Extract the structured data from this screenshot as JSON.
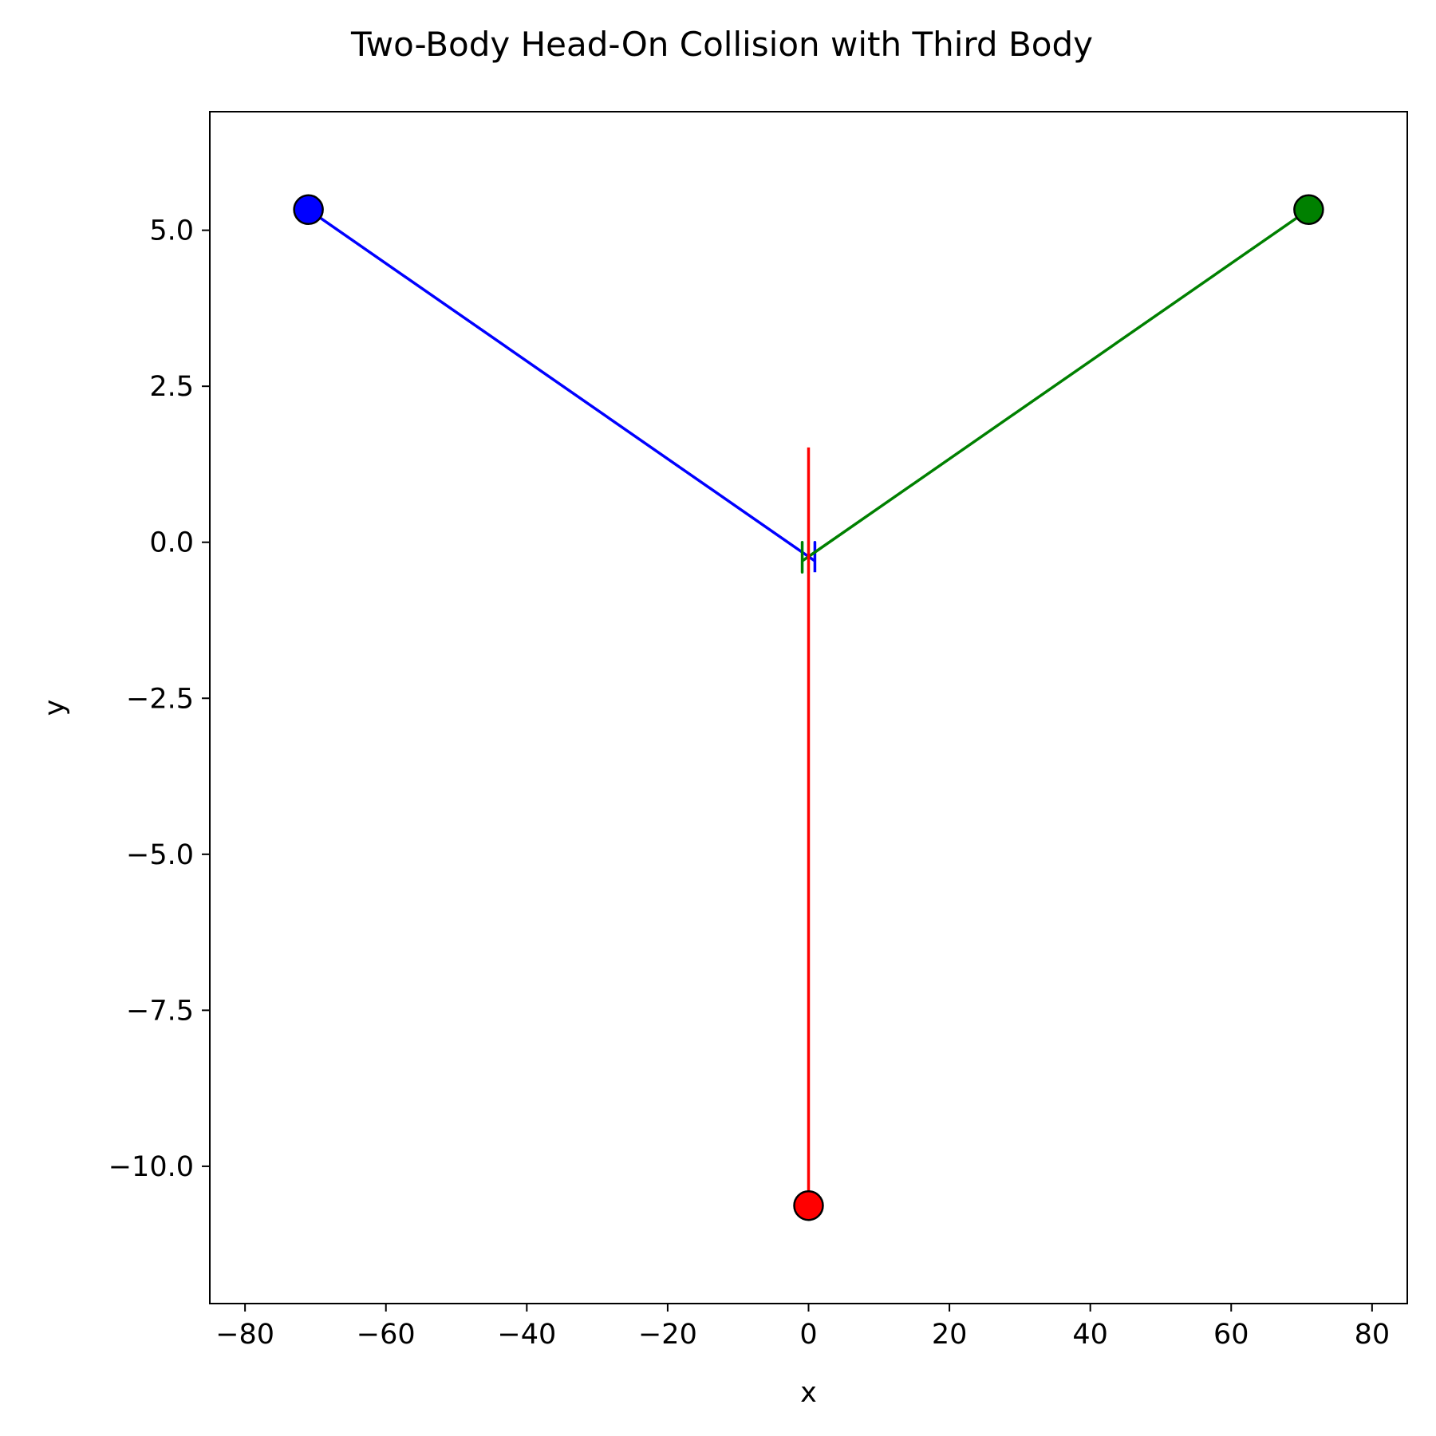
{
  "chart_data": {
    "type": "line",
    "title": "Two-Body Head-On Collision with Third Body",
    "xlabel": "x",
    "ylabel": "y",
    "xlim": [
      -85,
      85
    ],
    "ylim": [
      -12.2,
      6.9
    ],
    "xticks": [
      -80,
      -60,
      -40,
      -20,
      0,
      20,
      40,
      60,
      80
    ],
    "xtick_labels": [
      "−80",
      "−60",
      "−40",
      "−20",
      "0",
      "20",
      "40",
      "60",
      "80"
    ],
    "yticks": [
      5.0,
      2.5,
      0.0,
      -2.5,
      -5.0,
      -7.5,
      -10.0
    ],
    "ytick_labels": [
      "5.0",
      "2.5",
      "0.0",
      "−2.5",
      "−5.0",
      "−7.5",
      "−10.0"
    ],
    "grid": false,
    "series": [
      {
        "color": "#0000ff",
        "trajectory": [
          [
            -71,
            5.33
          ],
          [
            0.9,
            -0.3
          ],
          [
            0.9,
            -0.45
          ],
          [
            0.9,
            0.0
          ],
          [
            0.9,
            -0.48
          ]
        ],
        "marker": [
          -71,
          5.33
        ]
      },
      {
        "color": "#008000",
        "trajectory": [
          [
            71,
            5.33
          ],
          [
            -0.9,
            -0.3
          ],
          [
            -0.9,
            -0.48
          ],
          [
            -0.9,
            0.0
          ],
          [
            -0.9,
            -0.4
          ]
        ],
        "marker": [
          71,
          5.33
        ]
      },
      {
        "color": "#ff0000",
        "trajectory": [
          [
            0,
            -10.63
          ],
          [
            0,
            1.52
          ]
        ],
        "marker": [
          0,
          -10.63
        ]
      }
    ]
  }
}
